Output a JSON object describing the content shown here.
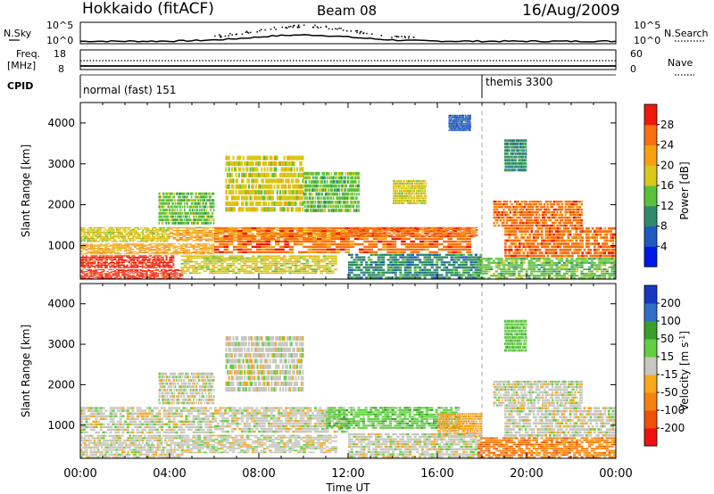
{
  "header": {
    "title": "Hokkaido (fitACF)",
    "beam": "Beam 08",
    "date": "16/Aug/2009"
  },
  "summary": {
    "nsky_label": "N.Sky",
    "nsky_ticks": [
      "10^5",
      "10^0"
    ],
    "nsearch_label": "N.Search",
    "freq_label_1": "Freq.",
    "freq_label_2": "[MHz]",
    "freq_ticks": [
      "18",
      "8"
    ],
    "nave_label": "Nave",
    "nave_ticks": [
      "60",
      "0"
    ],
    "cpid_label": "CPID",
    "cpid_modes": [
      {
        "name": "normal (fast) 151",
        "start_hour": 0
      },
      {
        "name": "themis 3300",
        "start_hour": 18
      }
    ]
  },
  "chart_data": [
    {
      "type": "heatmap",
      "name": "power",
      "ylabel": "Slant Range [km]",
      "xlabel": "",
      "yticks": [
        "1000",
        "2000",
        "3000",
        "4000"
      ],
      "ylim": [
        180,
        4500
      ],
      "xlim": [
        0,
        24
      ],
      "colorbar_label": "Power [dB]",
      "colorbar_ticks": [
        "4",
        "8",
        "12",
        "16",
        "20",
        "24",
        "28"
      ],
      "colorbar_colors": [
        "#0018e8",
        "#1e5ac0",
        "#2e8a6a",
        "#58c23a",
        "#d8c818",
        "#f8a010",
        "#f87010",
        "#f01808"
      ],
      "bands": [
        {
          "t0": 0.0,
          "t1": 4.6,
          "r0": 180,
          "r1": 420,
          "level": 7
        },
        {
          "t0": 0.0,
          "t1": 4.2,
          "r0": 440,
          "r1": 760,
          "level": 7
        },
        {
          "t0": 0.0,
          "t1": 6.0,
          "r0": 780,
          "r1": 1050,
          "level": 5
        },
        {
          "t0": 0.0,
          "t1": 4.0,
          "r0": 1080,
          "r1": 1450,
          "level": 4
        },
        {
          "t0": 4.0,
          "t1": 12.0,
          "r0": 1100,
          "r1": 1450,
          "level": 5
        },
        {
          "t0": 4.5,
          "t1": 11.5,
          "r0": 300,
          "r1": 760,
          "level": 4
        },
        {
          "t0": 6.0,
          "t1": 17.5,
          "r0": 800,
          "r1": 1450,
          "level": 6
        },
        {
          "t0": 12.0,
          "t1": 17.8,
          "r0": 1200,
          "r1": 1450,
          "level": 6
        },
        {
          "t0": 12.0,
          "t1": 18.0,
          "r0": 180,
          "r1": 800,
          "level": 2
        },
        {
          "t0": 17.8,
          "t1": 24.0,
          "r0": 180,
          "r1": 700,
          "level": 3
        },
        {
          "t0": 19.0,
          "t1": 24.0,
          "r0": 700,
          "r1": 1450,
          "level": 6
        },
        {
          "t0": 18.5,
          "t1": 22.5,
          "r0": 1450,
          "r1": 2100,
          "level": 6
        },
        {
          "t0": 3.5,
          "t1": 6.0,
          "r0": 1500,
          "r1": 2300,
          "level": 3
        },
        {
          "t0": 6.5,
          "t1": 10.0,
          "r0": 1800,
          "r1": 3200,
          "level": 4
        },
        {
          "t0": 10.0,
          "t1": 12.5,
          "r0": 1800,
          "r1": 2800,
          "level": 3
        },
        {
          "t0": 14.0,
          "t1": 15.5,
          "r0": 2000,
          "r1": 2600,
          "level": 4
        },
        {
          "t0": 16.5,
          "t1": 17.5,
          "r0": 3800,
          "r1": 4200,
          "level": 1
        },
        {
          "t0": 19.0,
          "t1": 20.0,
          "r0": 2800,
          "r1": 3600,
          "level": 2
        }
      ]
    },
    {
      "type": "heatmap",
      "name": "velocity",
      "ylabel": "Slant Range [km]",
      "xlabel": "Time UT",
      "yticks": [
        "1000",
        "2000",
        "3000",
        "4000"
      ],
      "ylim": [
        180,
        4500
      ],
      "xlim": [
        0,
        24
      ],
      "xticks": [
        "00:00",
        "04:00",
        "08:00",
        "12:00",
        "16:00",
        "20:00",
        "00:00"
      ],
      "colorbar_label_main": "Velocity [m s",
      "colorbar_label_sup": "-1",
      "colorbar_label_end": "]",
      "colorbar_ticks": [
        "200",
        "100",
        "50",
        "15",
        "-15",
        "-50",
        "-100",
        "-200"
      ],
      "colorbar_colors": [
        "#1838c0",
        "#3070c8",
        "#38a028",
        "#60d040",
        "#c8c8c0",
        "#f8a818",
        "#f88010",
        "#f05008",
        "#f01010"
      ],
      "bands": [
        {
          "t0": 0.0,
          "t1": 4.6,
          "r0": 180,
          "r1": 760,
          "level": 4
        },
        {
          "t0": 0.0,
          "t1": 6.0,
          "r0": 780,
          "r1": 1450,
          "level": 4
        },
        {
          "t0": 4.5,
          "t1": 11.5,
          "r0": 300,
          "r1": 760,
          "level": 4
        },
        {
          "t0": 6.0,
          "t1": 12.0,
          "r0": 800,
          "r1": 1450,
          "level": 4
        },
        {
          "t0": 11.0,
          "t1": 17.0,
          "r0": 900,
          "r1": 1450,
          "level": 3
        },
        {
          "t0": 16.0,
          "t1": 18.0,
          "r0": 700,
          "r1": 1300,
          "level": 5
        },
        {
          "t0": 12.0,
          "t1": 18.0,
          "r0": 180,
          "r1": 800,
          "level": 4
        },
        {
          "t0": 17.8,
          "t1": 24.0,
          "r0": 180,
          "r1": 700,
          "level": 6
        },
        {
          "t0": 19.0,
          "t1": 24.0,
          "r0": 700,
          "r1": 1450,
          "level": 4
        },
        {
          "t0": 18.5,
          "t1": 22.5,
          "r0": 1450,
          "r1": 2100,
          "level": 4
        },
        {
          "t0": 3.5,
          "t1": 6.0,
          "r0": 1500,
          "r1": 2300,
          "level": 4
        },
        {
          "t0": 6.5,
          "t1": 10.0,
          "r0": 1800,
          "r1": 3200,
          "level": 4
        },
        {
          "t0": 19.0,
          "t1": 20.0,
          "r0": 2800,
          "r1": 3600,
          "level": 3
        }
      ]
    }
  ]
}
